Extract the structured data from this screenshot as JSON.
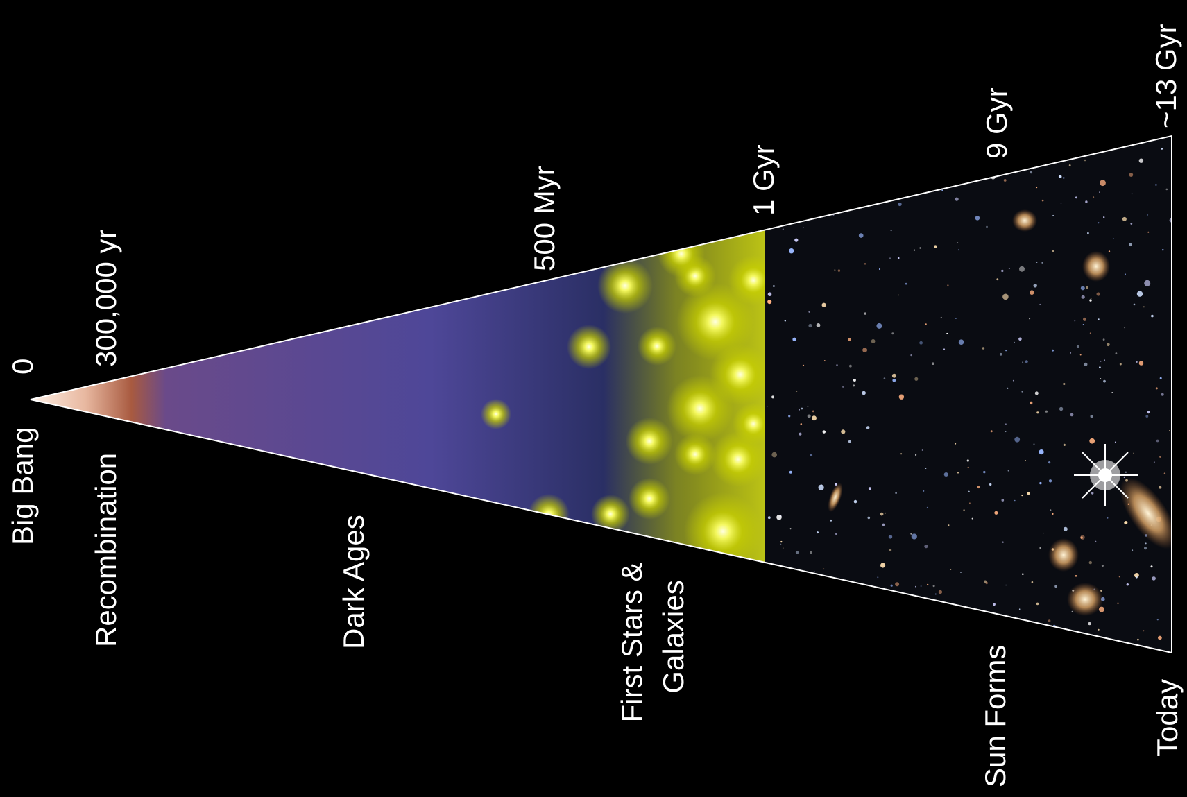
{
  "timeline": {
    "times": [
      "0",
      "300,000 yr",
      "500 Myr",
      "1 Gyr",
      "9 Gyr",
      "~13 Gyr"
    ],
    "eras": {
      "big_bang": "Big Bang",
      "recombination": "Recombination",
      "dark_ages": "Dark Ages",
      "first_stars": [
        "First Stars &",
        "Galaxies"
      ],
      "sun_forms": "Sun Forms",
      "today": "Today"
    }
  }
}
